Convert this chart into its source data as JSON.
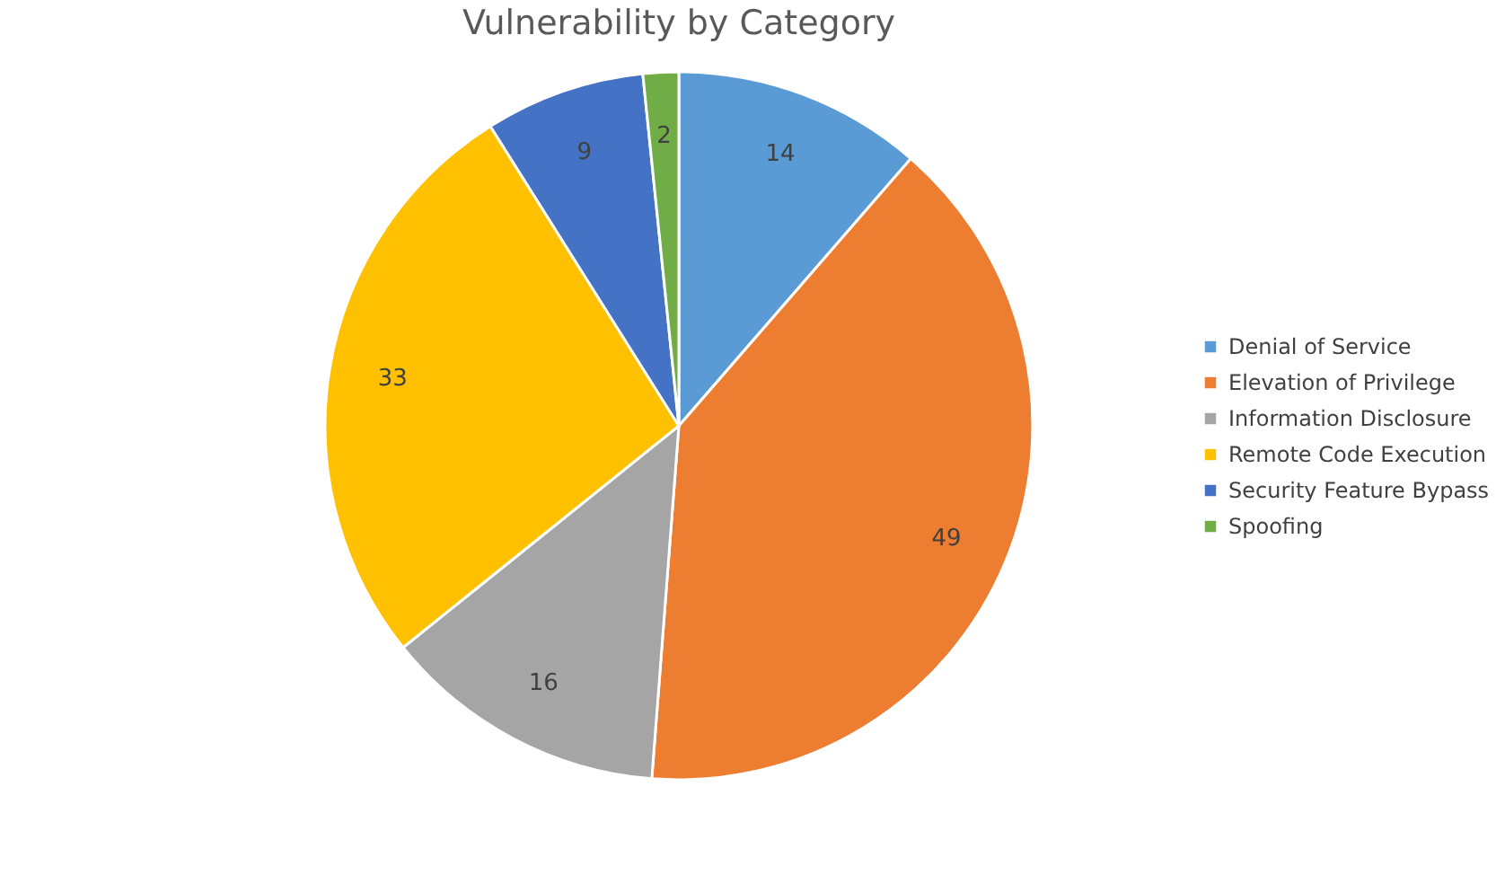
{
  "chart_data": {
    "type": "pie",
    "title": "Vulnerability by Category",
    "categories": [
      "Denial of Service",
      "Elevation of Privilege",
      "Information Disclosure",
      "Remote Code Execution",
      "Security Feature Bypass",
      "Spoofing"
    ],
    "values": [
      14,
      49,
      16,
      33,
      9,
      2
    ],
    "colors": [
      "#5b9bd5",
      "#ed7d31",
      "#a5a5a5",
      "#ffc000",
      "#4472c4",
      "#70ad47"
    ],
    "data_labels": true,
    "legend": "right"
  }
}
